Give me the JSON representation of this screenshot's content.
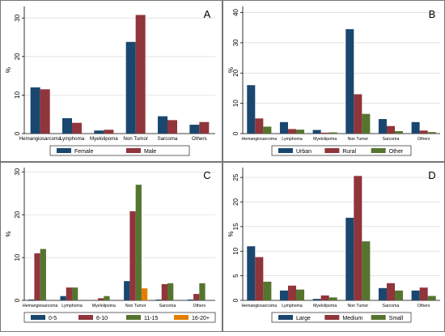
{
  "chart_data": [
    {
      "type": "bar",
      "panel_label": "A",
      "ylabel": "%",
      "ylim": [
        0,
        33
      ],
      "yticks": [
        0,
        10,
        20,
        30
      ],
      "categories": [
        "Hemangiosarcoma",
        "Lymphoma",
        "Myelolipoma",
        "Non Tumor",
        "Sarcoma",
        "Others"
      ],
      "series": [
        {
          "name": "Female",
          "color": "#1a476f",
          "values": [
            12.0,
            4.0,
            0.8,
            23.8,
            4.5,
            2.3
          ]
        },
        {
          "name": "Male",
          "color": "#90353b",
          "values": [
            11.5,
            2.8,
            1.0,
            30.8,
            3.5,
            3.0
          ]
        }
      ],
      "legend": "bottom"
    },
    {
      "type": "bar",
      "panel_label": "B",
      "ylabel": "%",
      "ylim": [
        0,
        42
      ],
      "yticks": [
        0,
        10,
        20,
        30,
        40
      ],
      "categories": [
        "Hemangiosarcoma",
        "Lymphoma",
        "Myelolipoma",
        "Non Tumor",
        "Sarcoma",
        "Others"
      ],
      "series": [
        {
          "name": "Urban",
          "color": "#1a476f",
          "values": [
            16.0,
            3.8,
            1.2,
            34.5,
            4.8,
            3.8
          ]
        },
        {
          "name": "Rural",
          "color": "#90353b",
          "values": [
            5.0,
            1.5,
            0.3,
            13.0,
            2.5,
            1.0
          ]
        },
        {
          "name": "Other",
          "color": "#55752f",
          "values": [
            2.3,
            1.3,
            0.4,
            6.5,
            0.8,
            0.5
          ]
        }
      ],
      "legend": "bottom"
    },
    {
      "type": "bar",
      "panel_label": "C",
      "ylabel": "%",
      "ylim": [
        0,
        31
      ],
      "yticks": [
        0,
        10,
        20,
        30
      ],
      "categories": [
        "Hemangiosarcoma",
        "Lymphoma",
        "Myelolipoma",
        "Non Tumor",
        "Sarcoma",
        "Others"
      ],
      "series": [
        {
          "name": "0-5",
          "color": "#1a476f",
          "values": [
            0.2,
            1.0,
            0.1,
            4.5,
            0.2,
            0.2
          ]
        },
        {
          "name": "6-10",
          "color": "#90353b",
          "values": [
            11.0,
            3.0,
            0.5,
            20.8,
            3.8,
            1.5
          ]
        },
        {
          "name": "11-15",
          "color": "#55752f",
          "values": [
            12.0,
            3.0,
            1.0,
            27.0,
            4.0,
            4.0
          ]
        },
        {
          "name": "16-20+",
          "color": "#e37e00",
          "values": [
            0,
            0,
            0,
            2.8,
            0,
            0
          ]
        }
      ],
      "legend": "bottom"
    },
    {
      "type": "bar",
      "panel_label": "D",
      "ylabel": "%",
      "ylim": [
        0,
        27
      ],
      "yticks": [
        0,
        5,
        10,
        15,
        20,
        25
      ],
      "categories": [
        "Hemangiosarcoma",
        "Lymphoma",
        "Myelolipoma",
        "Non Tumor",
        "Sarcoma",
        "Others"
      ],
      "series": [
        {
          "name": "Large",
          "color": "#1a476f",
          "values": [
            11.0,
            2.0,
            0.3,
            16.8,
            2.5,
            2.0
          ]
        },
        {
          "name": "Medium",
          "color": "#90353b",
          "values": [
            8.8,
            3.0,
            1.0,
            25.3,
            3.5,
            2.6
          ]
        },
        {
          "name": "Small",
          "color": "#55752f",
          "values": [
            3.8,
            2.2,
            0.6,
            12.0,
            2.0,
            0.9
          ]
        }
      ],
      "legend": "bottom"
    }
  ]
}
